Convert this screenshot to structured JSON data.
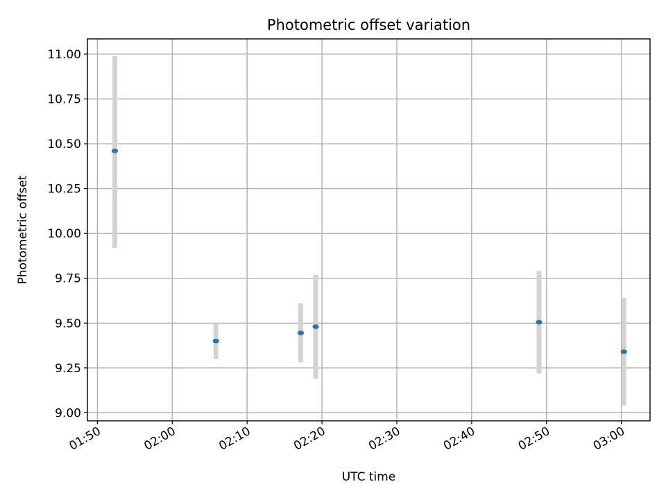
{
  "chart_data": {
    "type": "scatter",
    "title": "Photometric offset variation",
    "xlabel": "UTC time",
    "ylabel": "Photometric offset",
    "x_unit": "time of day (HH:MM)",
    "xlim": [
      "01:48:40",
      "03:03:50"
    ],
    "ylim": [
      8.955,
      11.085
    ],
    "x_ticks": [
      "01:50",
      "02:00",
      "02:10",
      "02:20",
      "02:30",
      "02:40",
      "02:50",
      "03:00"
    ],
    "y_ticks": [
      "9.00",
      "9.25",
      "9.50",
      "9.75",
      "10.00",
      "10.25",
      "10.50",
      "10.75",
      "11.00"
    ],
    "grid": true,
    "legend": "none",
    "point_color": "#1f77b4",
    "errorbar_color": "#d3d3d3",
    "series": [
      {
        "points": [
          {
            "x": "01:52:20",
            "y": 10.46,
            "ylow": 9.92,
            "yhigh": 10.99
          },
          {
            "x": "02:05:50",
            "y": 9.4,
            "ylow": 9.3,
            "yhigh": 9.5
          },
          {
            "x": "02:17:10",
            "y": 9.445,
            "ylow": 9.28,
            "yhigh": 9.61
          },
          {
            "x": "02:19:10",
            "y": 9.48,
            "ylow": 9.19,
            "yhigh": 9.77
          },
          {
            "x": "02:49:00",
            "y": 9.505,
            "ylow": 9.22,
            "yhigh": 9.79
          },
          {
            "x": "03:00:20",
            "y": 9.34,
            "ylow": 9.04,
            "yhigh": 9.64
          }
        ]
      }
    ]
  }
}
